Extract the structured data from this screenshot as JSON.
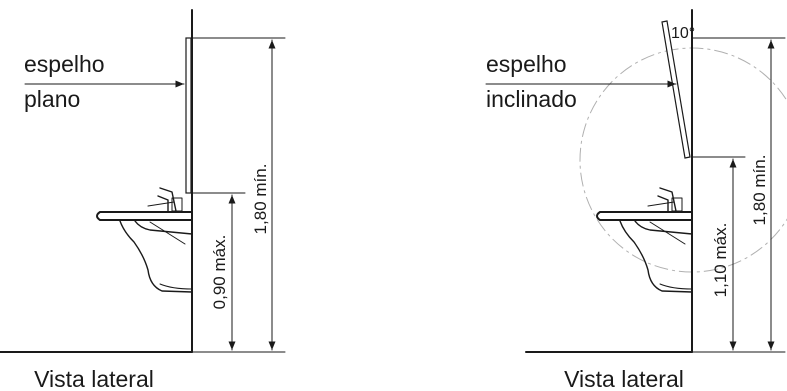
{
  "left": {
    "mirror_label_line1": "espelho",
    "mirror_label_line2": "plano",
    "dim_total": "1,80 mín.",
    "dim_lower": "0,90 máx.",
    "caption": "Vista lateral"
  },
  "right": {
    "mirror_label_line1": "espelho",
    "mirror_label_line2": "inclinado",
    "angle": "10°",
    "dim_total": "1,80 mín.",
    "dim_lower": "1,10 máx.",
    "caption": "Vista lateral"
  }
}
